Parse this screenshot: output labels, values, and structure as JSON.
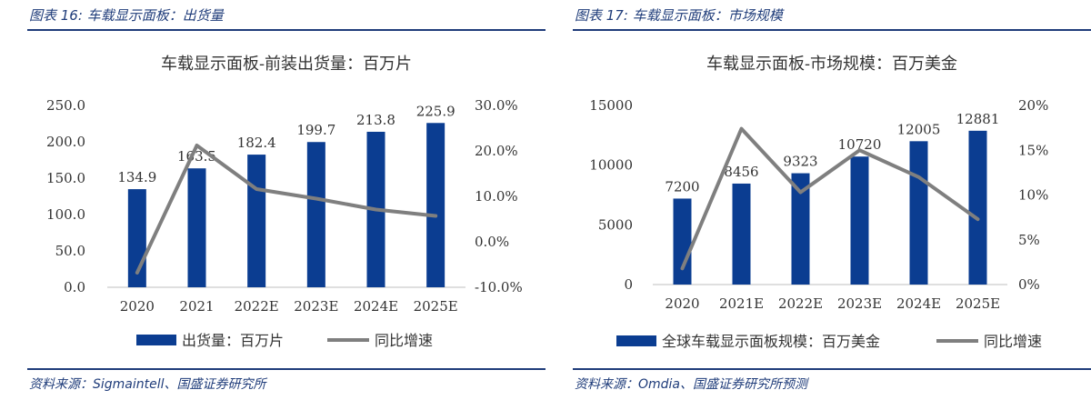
{
  "figures": [
    {
      "fig_label": "图表 16:",
      "fig_title": "车载显示面板：出货量",
      "source": "资料来源：Sigmaintell、国盛证券研究所",
      "chart_data": {
        "type": "bar+line",
        "title": "车载显示面板-前装出货量：百万片",
        "categories": [
          "2020",
          "2021",
          "2022E",
          "2023E",
          "2024E",
          "2025E"
        ],
        "series": [
          {
            "name": "出货量：百万片",
            "type": "bar",
            "axis": "left",
            "color": "#0b3d91",
            "values": [
              134.9,
              163.5,
              182.4,
              199.7,
              213.8,
              225.9
            ],
            "labels": [
              "134.9",
              "163.5",
              "182.4",
              "199.7",
              "213.8",
              "225.9"
            ]
          },
          {
            "name": "同比增速",
            "type": "line",
            "axis": "right",
            "color": "#7f7f7f",
            "values": [
              -6.8,
              21.2,
              11.6,
              9.5,
              7.1,
              5.7
            ]
          }
        ],
        "y_left": {
          "min": 0,
          "max": 250,
          "ticks": [
            0,
            50,
            100,
            150,
            200,
            250
          ],
          "tick_labels": [
            "0.0",
            "50.0",
            "100.0",
            "150.0",
            "200.0",
            "250.0"
          ]
        },
        "y_right": {
          "min": -10,
          "max": 30,
          "ticks": [
            -10,
            0,
            10,
            20,
            30
          ],
          "tick_labels": [
            "-10.0%",
            "0.0%",
            "10.0%",
            "20.0%",
            "30.0%"
          ]
        },
        "grid": false,
        "legend": "bottom"
      }
    },
    {
      "fig_label": "图表 17:",
      "fig_title": "车载显示面板：市场规模",
      "source": "资料来源：Omdia、国盛证券研究所预测",
      "chart_data": {
        "type": "bar+line",
        "title": "车载显示面板-市场规模：百万美金",
        "categories": [
          "2020",
          "2021E",
          "2022E",
          "2023E",
          "2024E",
          "2025E"
        ],
        "series": [
          {
            "name": "全球车载显示面板规模：百万美金",
            "type": "bar",
            "axis": "left",
            "color": "#0b3d91",
            "values": [
              7200,
              8456,
              9323,
              10720,
              12005,
              12881
            ],
            "labels": [
              "7200",
              "8456",
              "9323",
              "10720",
              "12005",
              "12881"
            ]
          },
          {
            "name": "同比增速",
            "type": "line",
            "axis": "right",
            "color": "#7f7f7f",
            "values": [
              1.8,
              17.4,
              10.3,
              15.0,
              12.0,
              7.3
            ]
          }
        ],
        "y_left": {
          "min": 0,
          "max": 15000,
          "ticks": [
            0,
            5000,
            10000,
            15000
          ],
          "tick_labels": [
            "0",
            "5000",
            "10000",
            "15000"
          ]
        },
        "y_right": {
          "min": 0,
          "max": 20,
          "ticks": [
            0,
            5,
            10,
            15,
            20
          ],
          "tick_labels": [
            "0%",
            "5%",
            "10%",
            "15%",
            "20%"
          ]
        },
        "grid": false,
        "legend": "bottom"
      }
    }
  ]
}
